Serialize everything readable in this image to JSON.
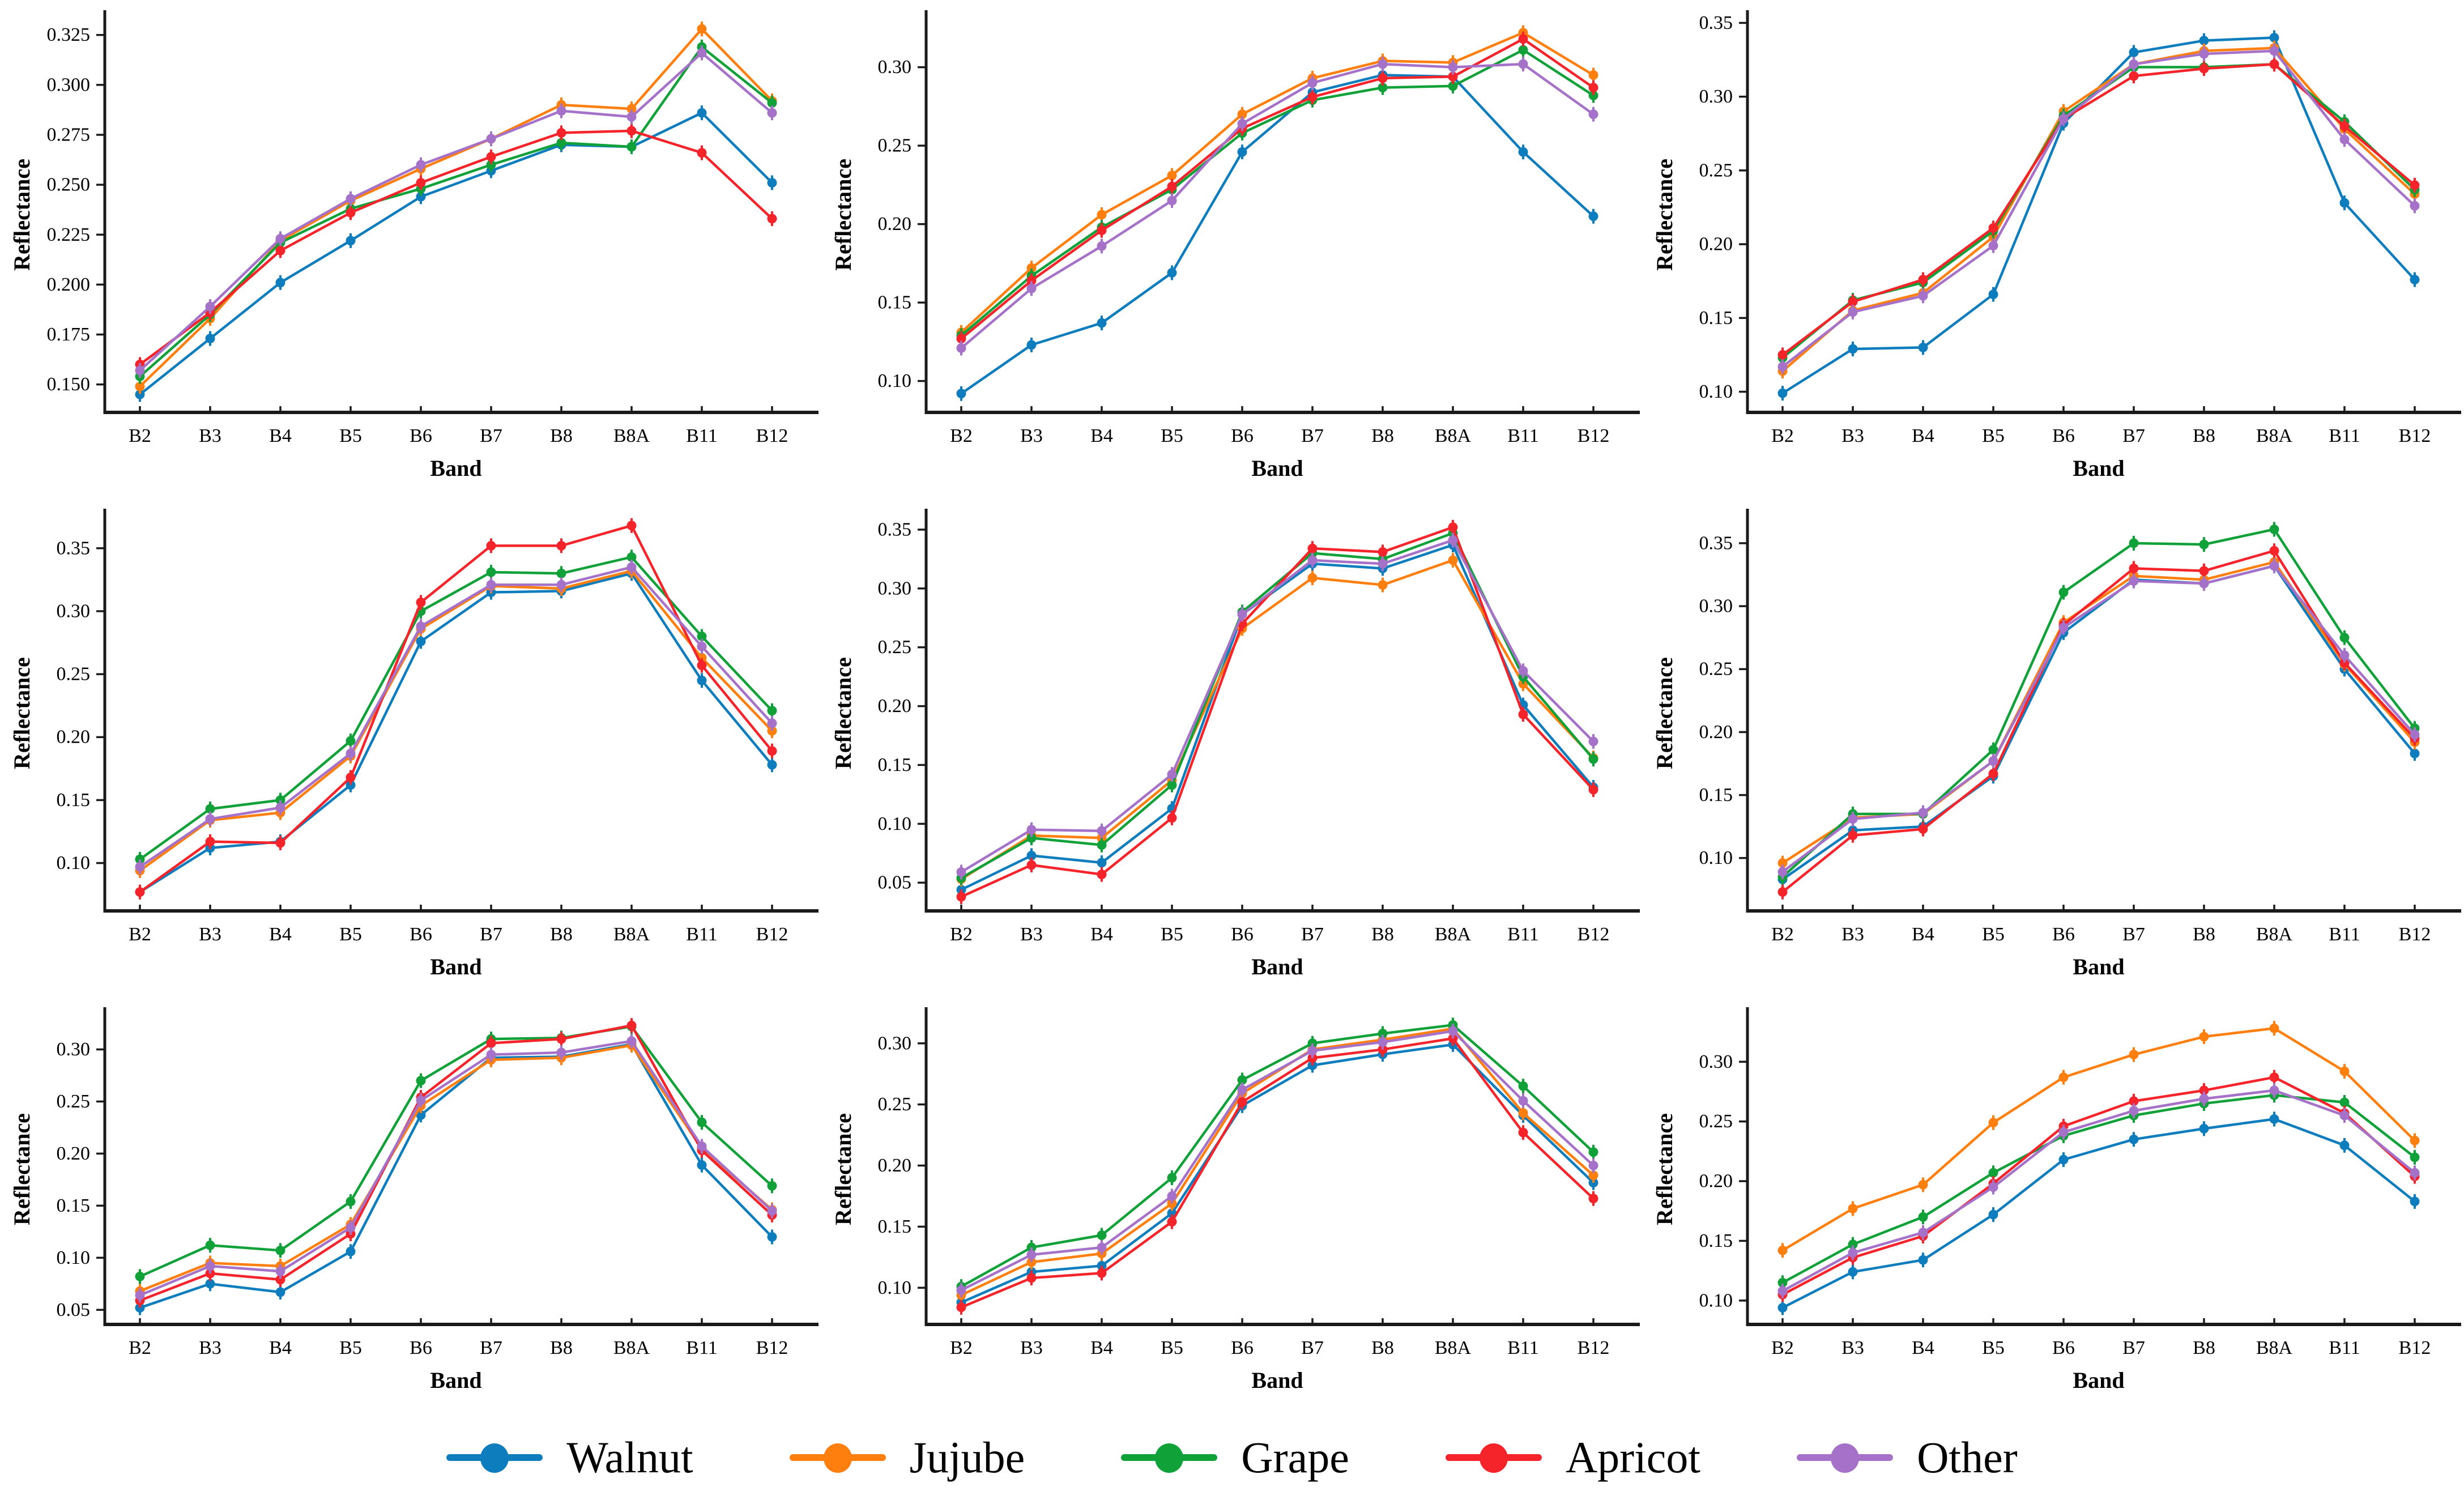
{
  "page": {
    "background": "#ffffff"
  },
  "axes": {
    "xlabel": "Band",
    "ylabel": "Reflectance"
  },
  "bands": [
    "B2",
    "B3",
    "B4",
    "B5",
    "B6",
    "B7",
    "B8",
    "B8A",
    "B11",
    "B12"
  ],
  "colors": {
    "Walnut": "#0e7dbe",
    "Jujube": "#ff7f0e",
    "Grape": "#10a139",
    "Apricot": "#f4242a",
    "Other": "#a571c9"
  },
  "legend": [
    "Walnut",
    "Jujube",
    "Grape",
    "Apricot",
    "Other"
  ],
  "chart_data": [
    {
      "type": "line",
      "grid_position": "row 1, col 1",
      "xlabel": "Band",
      "ylabel": "Reflectance",
      "categories": [
        "B2",
        "B3",
        "B4",
        "B5",
        "B6",
        "B7",
        "B8",
        "B8A",
        "B11",
        "B12"
      ],
      "ylim": [
        0.136,
        0.334
      ],
      "yticks": [
        0.15,
        0.175,
        0.2,
        0.225,
        0.25,
        0.275,
        0.3,
        0.325
      ],
      "ytick_decimals": 3,
      "series": [
        {
          "name": "Walnut",
          "values": [
            0.145,
            0.173,
            0.201,
            0.222,
            0.244,
            0.257,
            0.27,
            0.269,
            0.286,
            0.251
          ]
        },
        {
          "name": "Jujube",
          "values": [
            0.149,
            0.183,
            0.222,
            0.242,
            0.258,
            0.273,
            0.29,
            0.288,
            0.328,
            0.292
          ]
        },
        {
          "name": "Grape",
          "values": [
            0.154,
            0.185,
            0.221,
            0.238,
            0.248,
            0.26,
            0.271,
            0.269,
            0.319,
            0.291
          ]
        },
        {
          "name": "Apricot",
          "values": [
            0.16,
            0.186,
            0.217,
            0.236,
            0.251,
            0.264,
            0.276,
            0.277,
            0.266,
            0.233
          ]
        },
        {
          "name": "Other",
          "values": [
            0.157,
            0.189,
            0.223,
            0.243,
            0.26,
            0.273,
            0.287,
            0.284,
            0.316,
            0.286
          ]
        }
      ]
    },
    {
      "type": "line",
      "grid_position": "row 1, col 2",
      "xlabel": "Band",
      "ylabel": "Reflectance",
      "categories": [
        "B2",
        "B3",
        "B4",
        "B5",
        "B6",
        "B7",
        "B8",
        "B8A",
        "B11",
        "B12"
      ],
      "ylim": [
        0.08,
        0.332
      ],
      "yticks": [
        0.1,
        0.15,
        0.2,
        0.25,
        0.3
      ],
      "ytick_decimals": 2,
      "series": [
        {
          "name": "Walnut",
          "values": [
            0.092,
            0.123,
            0.137,
            0.169,
            0.246,
            0.284,
            0.295,
            0.294,
            0.246,
            0.205
          ]
        },
        {
          "name": "Jujube",
          "values": [
            0.131,
            0.172,
            0.206,
            0.231,
            0.27,
            0.293,
            0.304,
            0.303,
            0.322,
            0.295
          ]
        },
        {
          "name": "Grape",
          "values": [
            0.129,
            0.167,
            0.198,
            0.222,
            0.258,
            0.279,
            0.287,
            0.288,
            0.311,
            0.282
          ]
        },
        {
          "name": "Apricot",
          "values": [
            0.127,
            0.164,
            0.196,
            0.224,
            0.261,
            0.281,
            0.293,
            0.294,
            0.318,
            0.287
          ]
        },
        {
          "name": "Other",
          "values": [
            0.121,
            0.159,
            0.186,
            0.215,
            0.264,
            0.29,
            0.302,
            0.3,
            0.302,
            0.27
          ]
        }
      ]
    },
    {
      "type": "line",
      "grid_position": "row 1, col 3",
      "xlabel": "Band",
      "ylabel": "Reflectance",
      "categories": [
        "B2",
        "B3",
        "B4",
        "B5",
        "B6",
        "B7",
        "B8",
        "B8A",
        "B11",
        "B12"
      ],
      "ylim": [
        0.086,
        0.354
      ],
      "yticks": [
        0.1,
        0.15,
        0.2,
        0.25,
        0.3,
        0.35
      ],
      "ytick_decimals": 2,
      "series": [
        {
          "name": "Walnut",
          "values": [
            0.099,
            0.129,
            0.13,
            0.166,
            0.282,
            0.33,
            0.338,
            0.34,
            0.228,
            0.176
          ]
        },
        {
          "name": "Jujube",
          "values": [
            0.114,
            0.155,
            0.167,
            0.205,
            0.29,
            0.322,
            0.331,
            0.333,
            0.278,
            0.234
          ]
        },
        {
          "name": "Grape",
          "values": [
            0.123,
            0.162,
            0.174,
            0.209,
            0.287,
            0.32,
            0.32,
            0.322,
            0.283,
            0.237
          ]
        },
        {
          "name": "Apricot",
          "values": [
            0.125,
            0.161,
            0.176,
            0.211,
            0.285,
            0.314,
            0.319,
            0.322,
            0.28,
            0.24
          ]
        },
        {
          "name": "Other",
          "values": [
            0.117,
            0.154,
            0.165,
            0.199,
            0.285,
            0.322,
            0.329,
            0.331,
            0.271,
            0.226
          ]
        }
      ]
    },
    {
      "type": "line",
      "grid_position": "row 2, col 1",
      "xlabel": "Band",
      "ylabel": "Reflectance",
      "categories": [
        "B2",
        "B3",
        "B4",
        "B5",
        "B6",
        "B7",
        "B8",
        "B8A",
        "B11",
        "B12"
      ],
      "ylim": [
        0.062,
        0.376
      ],
      "yticks": [
        0.1,
        0.15,
        0.2,
        0.25,
        0.3,
        0.35
      ],
      "ytick_decimals": 2,
      "series": [
        {
          "name": "Walnut",
          "values": [
            0.077,
            0.112,
            0.117,
            0.162,
            0.276,
            0.315,
            0.316,
            0.33,
            0.245,
            0.178
          ]
        },
        {
          "name": "Jujube",
          "values": [
            0.094,
            0.134,
            0.14,
            0.185,
            0.286,
            0.32,
            0.318,
            0.332,
            0.263,
            0.205
          ]
        },
        {
          "name": "Grape",
          "values": [
            0.103,
            0.143,
            0.15,
            0.197,
            0.3,
            0.331,
            0.33,
            0.343,
            0.28,
            0.221
          ]
        },
        {
          "name": "Apricot",
          "values": [
            0.077,
            0.117,
            0.116,
            0.168,
            0.307,
            0.352,
            0.352,
            0.368,
            0.257,
            0.189
          ]
        },
        {
          "name": "Other",
          "values": [
            0.097,
            0.135,
            0.144,
            0.187,
            0.288,
            0.321,
            0.321,
            0.335,
            0.272,
            0.211
          ]
        }
      ]
    },
    {
      "type": "line",
      "grid_position": "row 2, col 2",
      "xlabel": "Band",
      "ylabel": "Reflectance",
      "categories": [
        "B2",
        "B3",
        "B4",
        "B5",
        "B6",
        "B7",
        "B8",
        "B8A",
        "B11",
        "B12"
      ],
      "ylim": [
        0.026,
        0.362
      ],
      "yticks": [
        0.05,
        0.1,
        0.15,
        0.2,
        0.25,
        0.3,
        0.35
      ],
      "ytick_decimals": 2,
      "series": [
        {
          "name": "Walnut",
          "values": [
            0.044,
            0.073,
            0.067,
            0.113,
            0.278,
            0.321,
            0.317,
            0.337,
            0.201,
            0.131
          ]
        },
        {
          "name": "Jujube",
          "values": [
            0.053,
            0.09,
            0.088,
            0.137,
            0.266,
            0.309,
            0.303,
            0.324,
            0.219,
            0.156
          ]
        },
        {
          "name": "Grape",
          "values": [
            0.054,
            0.088,
            0.082,
            0.133,
            0.28,
            0.33,
            0.325,
            0.347,
            0.225,
            0.155
          ]
        },
        {
          "name": "Apricot",
          "values": [
            0.038,
            0.065,
            0.057,
            0.105,
            0.27,
            0.334,
            0.331,
            0.352,
            0.193,
            0.129
          ]
        },
        {
          "name": "Other",
          "values": [
            0.059,
            0.095,
            0.094,
            0.142,
            0.278,
            0.324,
            0.321,
            0.341,
            0.23,
            0.17
          ]
        }
      ]
    },
    {
      "type": "line",
      "grid_position": "row 2, col 3",
      "xlabel": "Band",
      "ylabel": "Reflectance",
      "categories": [
        "B2",
        "B3",
        "B4",
        "B5",
        "B6",
        "B7",
        "B8",
        "B8A",
        "B11",
        "B12"
      ],
      "ylim": [
        0.058,
        0.372
      ],
      "yticks": [
        0.1,
        0.15,
        0.2,
        0.25,
        0.3,
        0.35
      ],
      "ytick_decimals": 2,
      "series": [
        {
          "name": "Walnut",
          "values": [
            0.083,
            0.122,
            0.125,
            0.165,
            0.279,
            0.321,
            0.318,
            0.332,
            0.25,
            0.183
          ]
        },
        {
          "name": "Jujube",
          "values": [
            0.096,
            0.132,
            0.135,
            0.177,
            0.287,
            0.324,
            0.321,
            0.335,
            0.254,
            0.192
          ]
        },
        {
          "name": "Grape",
          "values": [
            0.085,
            0.135,
            0.135,
            0.186,
            0.311,
            0.35,
            0.349,
            0.361,
            0.275,
            0.203
          ]
        },
        {
          "name": "Apricot",
          "values": [
            0.073,
            0.118,
            0.123,
            0.167,
            0.285,
            0.33,
            0.328,
            0.344,
            0.255,
            0.195
          ]
        },
        {
          "name": "Other",
          "values": [
            0.089,
            0.131,
            0.136,
            0.177,
            0.283,
            0.32,
            0.318,
            0.332,
            0.261,
            0.198
          ]
        }
      ]
    },
    {
      "type": "line",
      "grid_position": "row 3, col 1",
      "xlabel": "Band",
      "ylabel": "Reflectance",
      "categories": [
        "B2",
        "B3",
        "B4",
        "B5",
        "B6",
        "B7",
        "B8",
        "B8A",
        "B11",
        "B12"
      ],
      "ylim": [
        0.036,
        0.334
      ],
      "yticks": [
        0.05,
        0.1,
        0.15,
        0.2,
        0.25,
        0.3
      ],
      "ytick_decimals": 2,
      "series": [
        {
          "name": "Walnut",
          "values": [
            0.052,
            0.075,
            0.067,
            0.106,
            0.237,
            0.292,
            0.293,
            0.305,
            0.189,
            0.12
          ]
        },
        {
          "name": "Jujube",
          "values": [
            0.068,
            0.095,
            0.092,
            0.132,
            0.246,
            0.29,
            0.292,
            0.304,
            0.205,
            0.146
          ]
        },
        {
          "name": "Grape",
          "values": [
            0.082,
            0.112,
            0.107,
            0.154,
            0.27,
            0.31,
            0.311,
            0.322,
            0.23,
            0.169
          ]
        },
        {
          "name": "Apricot",
          "values": [
            0.059,
            0.085,
            0.079,
            0.123,
            0.254,
            0.306,
            0.31,
            0.323,
            0.203,
            0.141
          ]
        },
        {
          "name": "Other",
          "values": [
            0.064,
            0.092,
            0.087,
            0.129,
            0.251,
            0.295,
            0.297,
            0.308,
            0.207,
            0.145
          ]
        }
      ]
    },
    {
      "type": "line",
      "grid_position": "row 3, col 2",
      "xlabel": "Band",
      "ylabel": "Reflectance",
      "categories": [
        "B2",
        "B3",
        "B4",
        "B5",
        "B6",
        "B7",
        "B8",
        "B8A",
        "B11",
        "B12"
      ],
      "ylim": [
        0.07,
        0.324
      ],
      "yticks": [
        0.1,
        0.15,
        0.2,
        0.25,
        0.3
      ],
      "ytick_decimals": 2,
      "series": [
        {
          "name": "Walnut",
          "values": [
            0.088,
            0.113,
            0.118,
            0.161,
            0.249,
            0.282,
            0.291,
            0.299,
            0.241,
            0.186
          ]
        },
        {
          "name": "Jujube",
          "values": [
            0.094,
            0.121,
            0.128,
            0.169,
            0.259,
            0.295,
            0.303,
            0.312,
            0.243,
            0.192
          ]
        },
        {
          "name": "Grape",
          "values": [
            0.101,
            0.133,
            0.143,
            0.19,
            0.27,
            0.3,
            0.308,
            0.315,
            0.265,
            0.211
          ]
        },
        {
          "name": "Apricot",
          "values": [
            0.084,
            0.108,
            0.112,
            0.154,
            0.252,
            0.288,
            0.295,
            0.304,
            0.227,
            0.173
          ]
        },
        {
          "name": "Other",
          "values": [
            0.098,
            0.127,
            0.133,
            0.175,
            0.262,
            0.294,
            0.301,
            0.31,
            0.253,
            0.2
          ]
        }
      ]
    },
    {
      "type": "line",
      "grid_position": "row 3, col 3",
      "xlabel": "Band",
      "ylabel": "Reflectance",
      "categories": [
        "B2",
        "B3",
        "B4",
        "B5",
        "B6",
        "B7",
        "B8",
        "B8A",
        "B11",
        "B12"
      ],
      "ylim": [
        0.08,
        0.34
      ],
      "yticks": [
        0.1,
        0.15,
        0.2,
        0.25,
        0.3
      ],
      "ytick_decimals": 2,
      "series": [
        {
          "name": "Walnut",
          "values": [
            0.094,
            0.124,
            0.134,
            0.172,
            0.218,
            0.235,
            0.244,
            0.252,
            0.23,
            0.183
          ]
        },
        {
          "name": "Jujube",
          "values": [
            0.142,
            0.177,
            0.197,
            0.249,
            0.287,
            0.306,
            0.321,
            0.328,
            0.292,
            0.234
          ]
        },
        {
          "name": "Grape",
          "values": [
            0.115,
            0.147,
            0.17,
            0.207,
            0.238,
            0.255,
            0.265,
            0.272,
            0.266,
            0.22
          ]
        },
        {
          "name": "Apricot",
          "values": [
            0.105,
            0.136,
            0.154,
            0.198,
            0.246,
            0.267,
            0.276,
            0.287,
            0.257,
            0.204
          ]
        },
        {
          "name": "Other",
          "values": [
            0.108,
            0.14,
            0.157,
            0.195,
            0.241,
            0.259,
            0.269,
            0.276,
            0.255,
            0.207
          ]
        }
      ]
    }
  ]
}
